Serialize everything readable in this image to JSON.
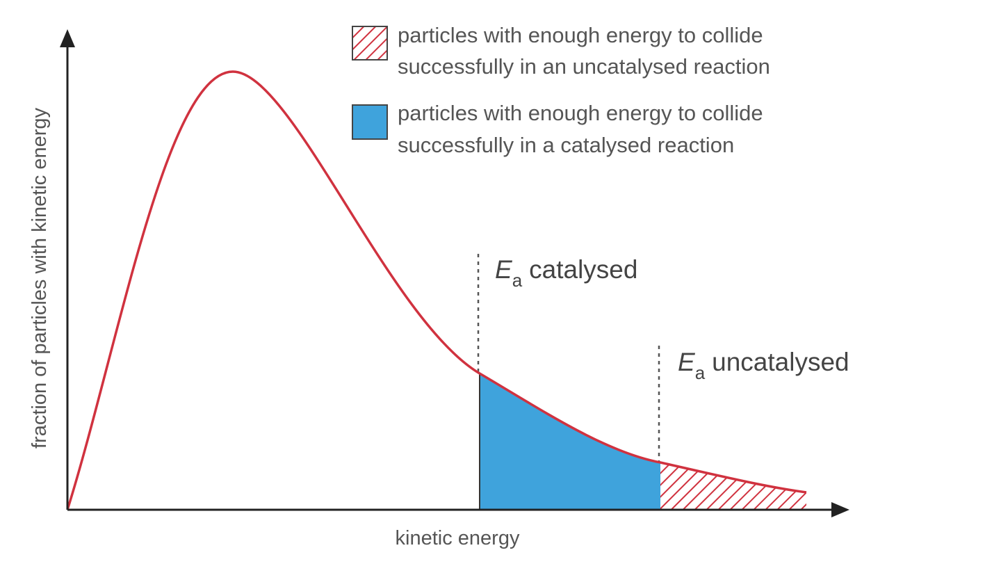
{
  "axes": {
    "x_label": "kinetic energy",
    "y_label": "fraction of particles with kinetic energy"
  },
  "legend": [
    {
      "lines": [
        "particles with enough energy to collide",
        "successfully in an uncatalysed reaction"
      ]
    },
    {
      "lines": [
        "particles with enough energy to collide",
        "successfully in a catalysed reaction"
      ]
    }
  ],
  "markers": [
    {
      "symbol": "E",
      "subscript": "a",
      "label": "catalysed"
    },
    {
      "symbol": "E",
      "subscript": "a",
      "label": "uncatalysed"
    }
  ]
}
